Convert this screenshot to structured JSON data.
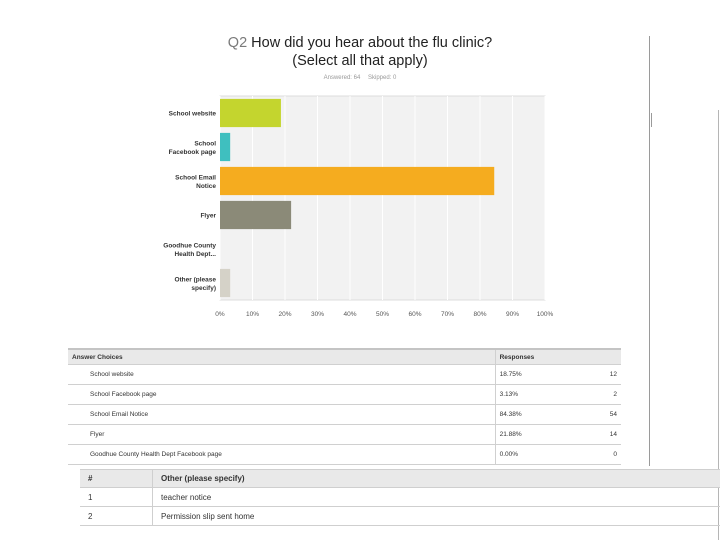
{
  "question": {
    "number": "Q2",
    "title_line1": "How did you hear about the flu clinic?",
    "title_line2": "(Select all that apply)",
    "answered": "Answered: 64",
    "skipped": "Skipped: 0"
  },
  "chart_data": {
    "type": "bar",
    "orientation": "horizontal",
    "categories": [
      [
        "School website"
      ],
      [
        "School",
        "Facebook page"
      ],
      [
        "School Email",
        "Notice"
      ],
      [
        "Flyer"
      ],
      [
        "Goodhue County",
        "Health Dept..."
      ],
      [
        "Other (please",
        "specify)"
      ]
    ],
    "values": [
      18.75,
      3.13,
      84.38,
      21.88,
      0.0,
      3.13
    ],
    "colors": [
      "#c4d52e",
      "#3fbfbf",
      "#f5ac1f",
      "#8b8a78",
      "#9a9a9a",
      "#d5d2c8"
    ],
    "x_ticks": [
      "0%",
      "10%",
      "20%",
      "30%",
      "40%",
      "50%",
      "60%",
      "70%",
      "80%",
      "90%",
      "100%"
    ],
    "xlim": [
      0,
      100
    ],
    "grid": true
  },
  "answers_table": {
    "headers": [
      "Answer Choices",
      "Responses",
      ""
    ],
    "rows": [
      {
        "choice": "School website",
        "percent": "18.75%",
        "count": "12"
      },
      {
        "choice": "School Facebook page",
        "percent": "3.13%",
        "count": "2"
      },
      {
        "choice": "School Email Notice",
        "percent": "84.38%",
        "count": "54"
      },
      {
        "choice": "Flyer",
        "percent": "21.88%",
        "count": "14"
      },
      {
        "choice": "Goodhue County Health Dept Facebook page",
        "percent": "0.00%",
        "count": "0"
      }
    ]
  },
  "other_table": {
    "headers": [
      "#",
      "Other (please specify)"
    ],
    "rows": [
      {
        "n": "1",
        "text": "teacher notice"
      },
      {
        "n": "2",
        "text": "Permission slip sent home"
      }
    ]
  }
}
